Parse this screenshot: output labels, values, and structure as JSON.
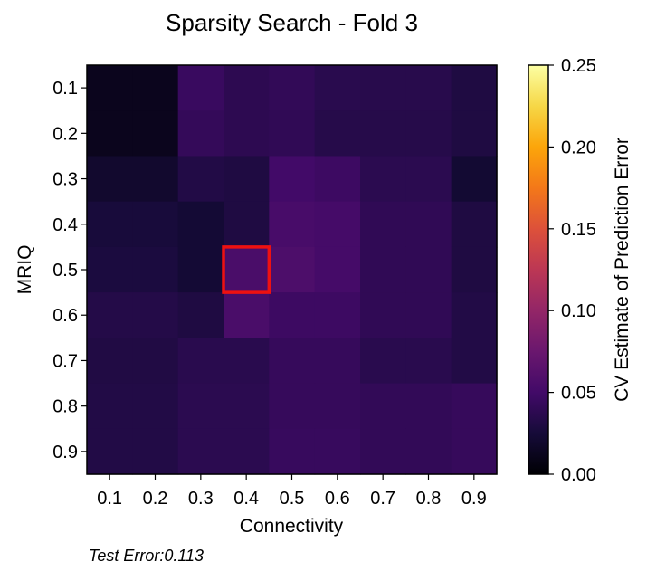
{
  "chart_data": {
    "type": "heatmap",
    "title": "Sparsity Search - Fold 3",
    "xlabel": "Connectivity",
    "ylabel": "MRIQ",
    "x_categories": [
      "0.1",
      "0.2",
      "0.3",
      "0.4",
      "0.5",
      "0.6",
      "0.7",
      "0.8",
      "0.9"
    ],
    "y_categories": [
      "0.1",
      "0.2",
      "0.3",
      "0.4",
      "0.5",
      "0.6",
      "0.7",
      "0.8",
      "0.9"
    ],
    "values": [
      [
        0.012,
        0.012,
        0.045,
        0.038,
        0.041,
        0.036,
        0.035,
        0.035,
        0.03
      ],
      [
        0.012,
        0.012,
        0.042,
        0.038,
        0.04,
        0.034,
        0.034,
        0.034,
        0.03
      ],
      [
        0.02,
        0.02,
        0.032,
        0.03,
        0.05,
        0.047,
        0.037,
        0.037,
        0.022
      ],
      [
        0.026,
        0.026,
        0.023,
        0.03,
        0.054,
        0.052,
        0.04,
        0.04,
        0.03
      ],
      [
        0.028,
        0.028,
        0.023,
        0.055,
        0.057,
        0.052,
        0.04,
        0.04,
        0.03
      ],
      [
        0.033,
        0.033,
        0.03,
        0.055,
        0.047,
        0.047,
        0.04,
        0.04,
        0.032
      ],
      [
        0.031,
        0.031,
        0.036,
        0.036,
        0.043,
        0.043,
        0.036,
        0.036,
        0.032
      ],
      [
        0.032,
        0.032,
        0.037,
        0.037,
        0.043,
        0.043,
        0.041,
        0.041,
        0.043
      ],
      [
        0.032,
        0.032,
        0.037,
        0.037,
        0.044,
        0.044,
        0.041,
        0.041,
        0.043
      ]
    ],
    "highlight": {
      "x": "0.4",
      "y": "0.5",
      "color": "#ee1111"
    },
    "colormap": "inferno",
    "colorbar": {
      "label": "CV Estimate of Prediction Error",
      "range": [
        0.0,
        0.25
      ],
      "ticks": [
        "0.00",
        "0.05",
        "0.10",
        "0.15",
        "0.20",
        "0.25"
      ]
    }
  },
  "footnote": "Test Error:0.113"
}
